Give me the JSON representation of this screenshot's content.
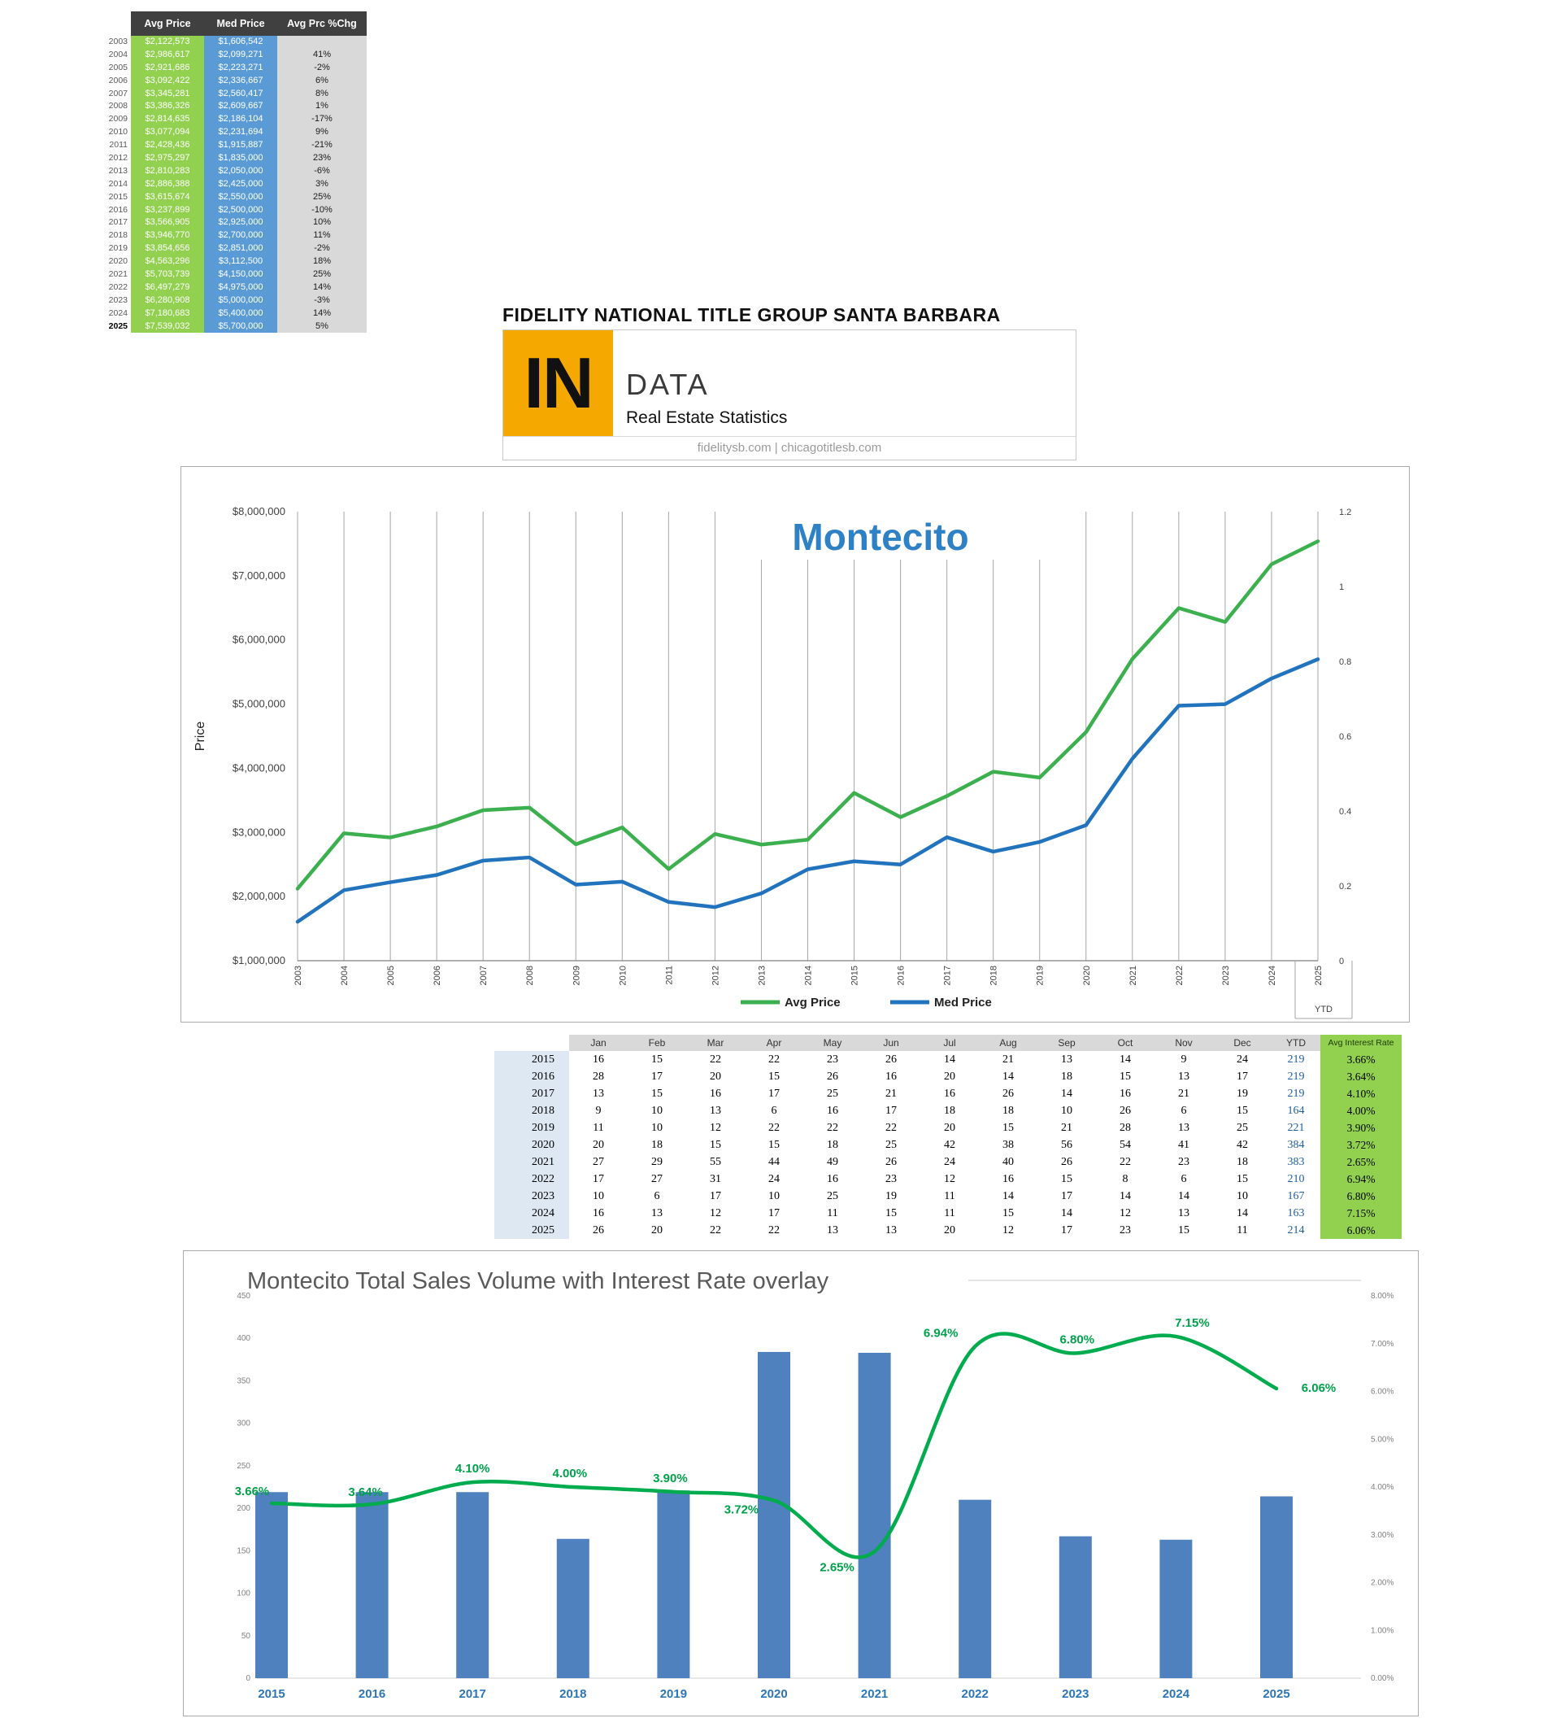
{
  "header": {
    "company": "FIDELITY NATIONAL TITLE GROUP SANTA BARBARA",
    "logo_in": "IN",
    "logo_data": "DATA",
    "logo_subtitle": "Real Estate Statistics",
    "websites": "fidelitysb.com | chicagotitlesb.com"
  },
  "price_table": {
    "headers": [
      "Avg Price",
      "Med Price",
      "Avg Prc %Chg"
    ],
    "rows": [
      {
        "year": "2003",
        "avg": "$2,122,573",
        "med": "$1,606,542",
        "chg": ""
      },
      {
        "year": "2004",
        "avg": "$2,986,617",
        "med": "$2,099,271",
        "chg": "41%"
      },
      {
        "year": "2005",
        "avg": "$2,921,686",
        "med": "$2,223,271",
        "chg": "-2%"
      },
      {
        "year": "2006",
        "avg": "$3,092,422",
        "med": "$2,336,667",
        "chg": "6%"
      },
      {
        "year": "2007",
        "avg": "$3,345,281",
        "med": "$2,560,417",
        "chg": "8%"
      },
      {
        "year": "2008",
        "avg": "$3,386,326",
        "med": "$2,609,667",
        "chg": "1%"
      },
      {
        "year": "2009",
        "avg": "$2,814,635",
        "med": "$2,186,104",
        "chg": "-17%"
      },
      {
        "year": "2010",
        "avg": "$3,077,094",
        "med": "$2,231,694",
        "chg": "9%"
      },
      {
        "year": "2011",
        "avg": "$2,428,436",
        "med": "$1,915,887",
        "chg": "-21%"
      },
      {
        "year": "2012",
        "avg": "$2,975,297",
        "med": "$1,835,000",
        "chg": "23%"
      },
      {
        "year": "2013",
        "avg": "$2,810,283",
        "med": "$2,050,000",
        "chg": "-6%"
      },
      {
        "year": "2014",
        "avg": "$2,886,388",
        "med": "$2,425,000",
        "chg": "3%"
      },
      {
        "year": "2015",
        "avg": "$3,615,674",
        "med": "$2,550,000",
        "chg": "25%"
      },
      {
        "year": "2016",
        "avg": "$3,237,899",
        "med": "$2,500,000",
        "chg": "-10%"
      },
      {
        "year": "2017",
        "avg": "$3,566,905",
        "med": "$2,925,000",
        "chg": "10%"
      },
      {
        "year": "2018",
        "avg": "$3,946,770",
        "med": "$2,700,000",
        "chg": "11%"
      },
      {
        "year": "2019",
        "avg": "$3,854,656",
        "med": "$2,851,000",
        "chg": "-2%"
      },
      {
        "year": "2020",
        "avg": "$4,563,296",
        "med": "$3,112,500",
        "chg": "18%"
      },
      {
        "year": "2021",
        "avg": "$5,703,739",
        "med": "$4,150,000",
        "chg": "25%"
      },
      {
        "year": "2022",
        "avg": "$6,497,279",
        "med": "$4,975,000",
        "chg": "14%"
      },
      {
        "year": "2023",
        "avg": "$6,280,908",
        "med": "$5,000,000",
        "chg": "-3%"
      },
      {
        "year": "2024",
        "avg": "$7,180,683",
        "med": "$5,400,000",
        "chg": "14%"
      },
      {
        "year": "2025",
        "avg": "$7,539,032",
        "med": "$5,700,000",
        "chg": "5%"
      }
    ]
  },
  "monthly_table": {
    "col_headers": [
      "Jan",
      "Feb",
      "Mar",
      "Apr",
      "May",
      "Jun",
      "Jul",
      "Aug",
      "Sep",
      "Oct",
      "Nov",
      "Dec",
      "YTD",
      "Avg Interest Rate"
    ],
    "rows": [
      {
        "year": "2015",
        "months": [
          16,
          15,
          22,
          22,
          23,
          26,
          14,
          21,
          13,
          14,
          9,
          24
        ],
        "ytd": 219,
        "rate": "3.66%"
      },
      {
        "year": "2016",
        "months": [
          28,
          17,
          20,
          15,
          26,
          16,
          20,
          14,
          18,
          15,
          13,
          17
        ],
        "ytd": 219,
        "rate": "3.64%"
      },
      {
        "year": "2017",
        "months": [
          13,
          15,
          16,
          17,
          25,
          21,
          16,
          26,
          14,
          16,
          21,
          19
        ],
        "ytd": 219,
        "rate": "4.10%"
      },
      {
        "year": "2018",
        "months": [
          9,
          10,
          13,
          6,
          16,
          17,
          18,
          18,
          10,
          26,
          6,
          15
        ],
        "ytd": 164,
        "rate": "4.00%"
      },
      {
        "year": "2019",
        "months": [
          11,
          10,
          12,
          22,
          22,
          22,
          20,
          15,
          21,
          28,
          13,
          25
        ],
        "ytd": 221,
        "rate": "3.90%"
      },
      {
        "year": "2020",
        "months": [
          20,
          18,
          15,
          15,
          18,
          25,
          42,
          38,
          56,
          54,
          41,
          42
        ],
        "ytd": 384,
        "rate": "3.72%"
      },
      {
        "year": "2021",
        "months": [
          27,
          29,
          55,
          44,
          49,
          26,
          24,
          40,
          26,
          22,
          23,
          18
        ],
        "ytd": 383,
        "rate": "2.65%"
      },
      {
        "year": "2022",
        "months": [
          17,
          27,
          31,
          24,
          16,
          23,
          12,
          16,
          15,
          8,
          6,
          15
        ],
        "ytd": 210,
        "rate": "6.94%"
      },
      {
        "year": "2023",
        "months": [
          10,
          6,
          17,
          10,
          25,
          19,
          11,
          14,
          17,
          14,
          14,
          10
        ],
        "ytd": 167,
        "rate": "6.80%"
      },
      {
        "year": "2024",
        "months": [
          16,
          13,
          12,
          17,
          11,
          15,
          11,
          15,
          14,
          12,
          13,
          14
        ],
        "ytd": 163,
        "rate": "7.15%"
      },
      {
        "year": "2025",
        "months": [
          26,
          20,
          22,
          22,
          13,
          13,
          20,
          12,
          17,
          23,
          15,
          11
        ],
        "ytd": 214,
        "rate": "6.06%"
      }
    ]
  },
  "chart_data": [
    {
      "type": "line",
      "title": "Montecito",
      "ylabel": "Price",
      "x": [
        "2003",
        "2004",
        "2005",
        "2006",
        "2007",
        "2008",
        "2009",
        "2010",
        "2011",
        "2012",
        "2013",
        "2014",
        "2015",
        "2016",
        "2017",
        "2018",
        "2019",
        "2020",
        "2021",
        "2022",
        "2023",
        "2024",
        "2025"
      ],
      "x_note": "YTD",
      "series": [
        {
          "name": "Avg Price",
          "color": "#3CB04E",
          "values": [
            2122573,
            2986617,
            2921686,
            3092422,
            3345281,
            3386326,
            2814635,
            3077094,
            2428436,
            2975297,
            2810283,
            2886388,
            3615674,
            3237899,
            3566905,
            3946770,
            3854656,
            4563296,
            5703739,
            6497279,
            6280908,
            7180683,
            7539032
          ]
        },
        {
          "name": "Med Price",
          "color": "#2173BE",
          "values": [
            1606542,
            2099271,
            2223271,
            2336667,
            2560417,
            2609667,
            2186104,
            2231694,
            1915887,
            1835000,
            2050000,
            2425000,
            2550000,
            2500000,
            2925000,
            2700000,
            2851000,
            3112500,
            4150000,
            4975000,
            5000000,
            5400000,
            5700000
          ]
        }
      ],
      "ylim": [
        1000000,
        8000000
      ],
      "y_ticks": [
        "$1,000,000",
        "$2,000,000",
        "$3,000,000",
        "$4,000,000",
        "$5,000,000",
        "$6,000,000",
        "$7,000,000",
        "$8,000,000"
      ],
      "secondary_ylim": [
        0,
        1.2
      ],
      "secondary_ticks": [
        "0",
        "0.2",
        "0.4",
        "0.6",
        "0.8",
        "1",
        "1.2"
      ],
      "legend_position": "bottom",
      "grid": "vertical"
    },
    {
      "type": "bar",
      "title": "Montecito Total Sales Volume with Interest Rate overlay",
      "categories": [
        "2015",
        "2016",
        "2017",
        "2018",
        "2019",
        "2020",
        "2021",
        "2022",
        "2023",
        "2024",
        "2025"
      ],
      "bar_series": {
        "name": "Total Sales Volume",
        "color": "#4E81BD",
        "values": [
          219,
          219,
          219,
          164,
          221,
          384,
          383,
          210,
          167,
          163,
          214
        ]
      },
      "line_series": {
        "name": "Avg Interest Rate",
        "color": "#00AC4E",
        "values": [
          3.66,
          3.64,
          4.1,
          4.0,
          3.9,
          3.72,
          2.65,
          6.94,
          6.8,
          7.15,
          6.06
        ],
        "labels": [
          "3.66%",
          "3.64%",
          "4.10%",
          "4.00%",
          "3.90%",
          "3.72%",
          "2.65%",
          "6.94%",
          "6.80%",
          "7.15%",
          "6.06%"
        ]
      },
      "ylim_left": [
        0,
        450
      ],
      "left_ticks": [
        "0",
        "50",
        "100",
        "150",
        "200",
        "250",
        "300",
        "350",
        "400",
        "450"
      ],
      "ylim_right": [
        0,
        8
      ],
      "right_ticks": [
        "0.00%",
        "1.00%",
        "2.00%",
        "3.00%",
        "4.00%",
        "5.00%",
        "6.00%",
        "7.00%",
        "8.00%"
      ],
      "grid": "off",
      "legend_position": "none"
    }
  ],
  "colors": {
    "title_blue": "#2E81C5",
    "avg_line_green": "#3CB04E",
    "med_line_blue": "#2173BE",
    "bar_blue": "#4E81BD",
    "rate_line_green": "#00AC4E",
    "label_green": "#00A14B",
    "year_label_blue": "#2E75B6",
    "cell_green": "#92D050",
    "cell_blue": "#5B9BD5",
    "cell_gray": "#D9D9D9",
    "header_dark": "#404040",
    "logo_orange": "#F5A800"
  }
}
